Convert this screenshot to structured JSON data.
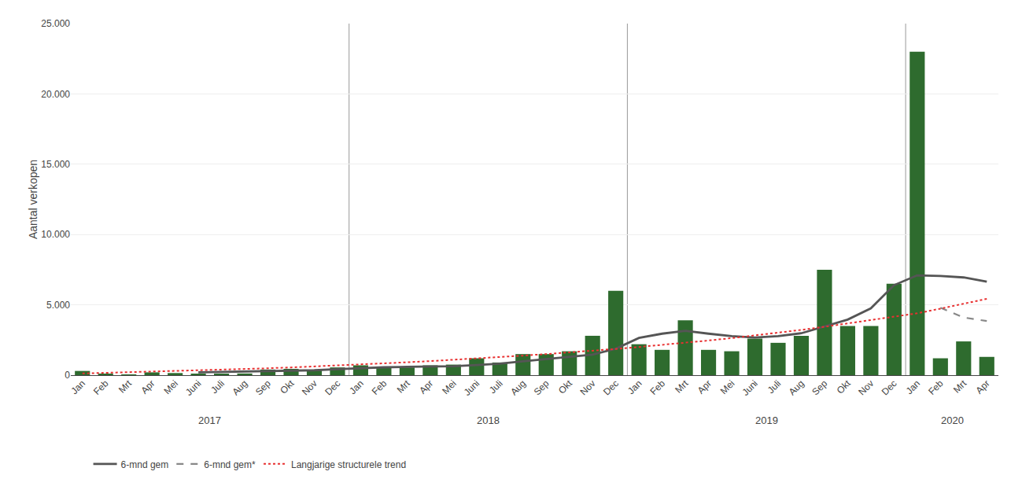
{
  "chart_data": {
    "type": "bar",
    "categories": [
      "Jan",
      "Feb",
      "Mrt",
      "Apr",
      "Mei",
      "Juni",
      "Juli",
      "Aug",
      "Sep",
      "Okt",
      "Nov",
      "Dec",
      "Jan",
      "Feb",
      "Mrt",
      "Apr",
      "Mei",
      "Juni",
      "Juli",
      "Aug",
      "Sep",
      "Okt",
      "Nov",
      "Dec",
      "Jan",
      "Feb",
      "Mrt",
      "Apr",
      "Mei",
      "Juni",
      "Juli",
      "Aug",
      "Sep",
      "Okt",
      "Nov",
      "Dec",
      "Jan",
      "Feb",
      "Mrt",
      "Apr"
    ],
    "category_groups": [
      "2017",
      "2017",
      "2017",
      "2017",
      "2017",
      "2017",
      "2017",
      "2017",
      "2017",
      "2017",
      "2017",
      "2017",
      "2018",
      "2018",
      "2018",
      "2018",
      "2018",
      "2018",
      "2018",
      "2018",
      "2018",
      "2018",
      "2018",
      "2018",
      "2019",
      "2019",
      "2019",
      "2019",
      "2019",
      "2019",
      "2019",
      "2019",
      "2019",
      "2019",
      "2019",
      "2019",
      "2020",
      "2020",
      "2020",
      "2020"
    ],
    "series": [
      {
        "type": "bar",
        "color": "#2e6b2e",
        "values": [
          300,
          100,
          50,
          200,
          150,
          100,
          80,
          120,
          400,
          450,
          350,
          550,
          700,
          600,
          550,
          700,
          750,
          1200,
          900,
          1500,
          1500,
          1700,
          2800,
          6000,
          2200,
          1800,
          3900,
          1800,
          1700,
          2600,
          2300,
          2800,
          7500,
          3500,
          3500,
          6500,
          23000,
          1200,
          2400,
          1300
        ]
      },
      {
        "type": "line",
        "name": "6-mnd gem",
        "color": "#555555",
        "line_style": "solid",
        "values": [
          null,
          null,
          null,
          null,
          null,
          200,
          230,
          240,
          280,
          310,
          350,
          430,
          510,
          560,
          590,
          610,
          640,
          720,
          820,
          980,
          1130,
          1280,
          1460,
          1880,
          2650,
          2950,
          3150,
          2950,
          2780,
          2680,
          2780,
          2980,
          3450,
          3950,
          4750,
          6400,
          7100,
          7050,
          6950,
          6650
        ]
      },
      {
        "type": "line",
        "name": "6-mnd gem*",
        "color": "#888888",
        "line_style": "dashed",
        "values": [
          null,
          null,
          null,
          null,
          null,
          null,
          null,
          null,
          null,
          null,
          null,
          null,
          null,
          null,
          null,
          null,
          null,
          null,
          null,
          null,
          null,
          null,
          null,
          null,
          null,
          null,
          null,
          null,
          null,
          null,
          null,
          null,
          null,
          null,
          null,
          null,
          null,
          4800,
          4100,
          3850
        ]
      },
      {
        "type": "line",
        "name": "Langjarige structurele trend",
        "color": "#e83030",
        "line_style": "dotted",
        "values": [
          120,
          165,
          200,
          240,
          280,
          330,
          380,
          430,
          490,
          550,
          615,
          685,
          755,
          835,
          915,
          1000,
          1090,
          1185,
          1285,
          1390,
          1500,
          1615,
          1735,
          1865,
          2005,
          2150,
          2305,
          2465,
          2635,
          2820,
          3015,
          3220,
          3440,
          3675,
          3920,
          4180,
          4400,
          4730,
          5070,
          5430
        ]
      }
    ],
    "ylabel": "Aantal verkopen",
    "ylim": [
      0,
      25000
    ],
    "yticks": [
      0,
      {
        "value": 5000,
        "label": "5.000"
      },
      {
        "value": 10000,
        "label": "10.000"
      },
      {
        "value": 15000,
        "label": "15.000"
      },
      {
        "value": 20000,
        "label": "20.000"
      },
      {
        "value": 25000,
        "label": "25.000"
      }
    ],
    "grid": true,
    "legend": "bottom"
  }
}
